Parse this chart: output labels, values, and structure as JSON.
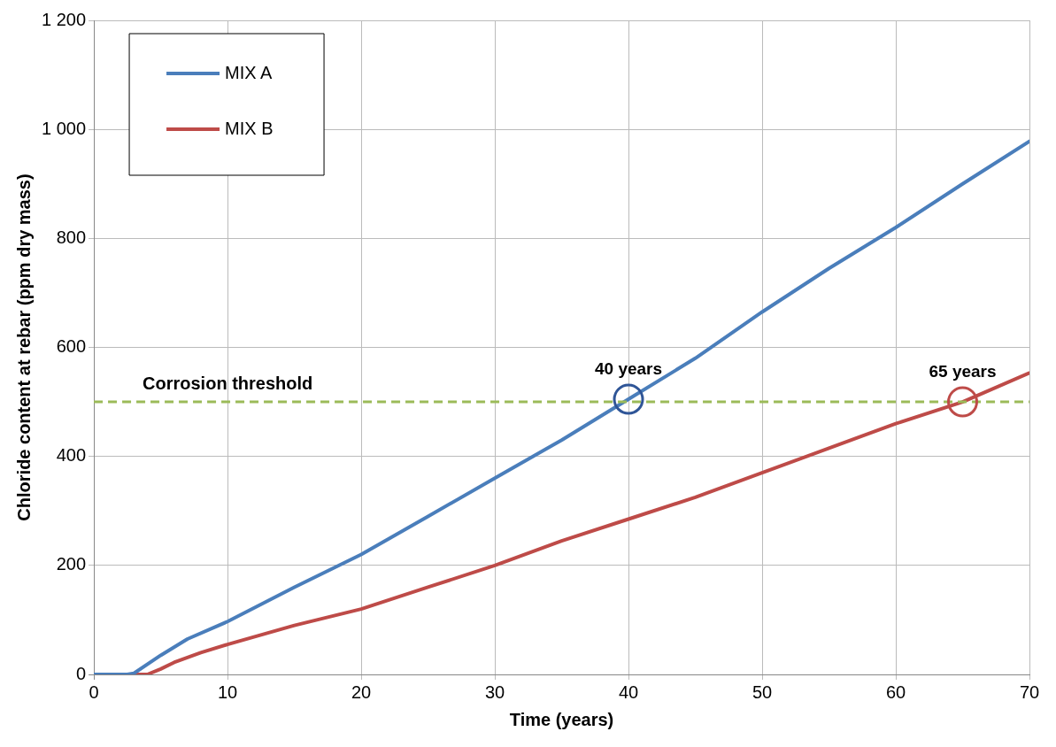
{
  "chart_data": {
    "type": "line",
    "xlabel": "Time (years)",
    "ylabel": "Chloride content at rebar (ppm dry mass)",
    "xlim": [
      0,
      70
    ],
    "xticks": [
      0,
      10,
      20,
      30,
      40,
      50,
      60,
      70
    ],
    "ylim": [
      0,
      1200
    ],
    "yticks": [
      0,
      200,
      400,
      600,
      800,
      {
        "value": 1000,
        "label": "1 000"
      },
      {
        "value": 1200,
        "label": "1 200"
      }
    ],
    "grid": true,
    "legend": "top left",
    "marker": "none",
    "line_style": "solid",
    "series": [
      {
        "name": "MIX A",
        "color": "#4a7ebb",
        "x": [
          0,
          2.5,
          3,
          5,
          7,
          10,
          15,
          20,
          25,
          30,
          35,
          40,
          45,
          50,
          55,
          60,
          65,
          70
        ],
        "values": [
          0,
          0,
          2,
          35,
          65,
          97,
          160,
          220,
          290,
          360,
          430,
          505,
          580,
          665,
          745,
          820,
          900,
          978
        ]
      },
      {
        "name": "MIX B",
        "color": "#be4b48",
        "x": [
          0,
          4,
          5,
          6,
          8,
          10,
          15,
          20,
          25,
          30,
          35,
          40,
          45,
          50,
          55,
          60,
          65,
          70
        ],
        "values": [
          0,
          0,
          10,
          22,
          40,
          55,
          90,
          120,
          160,
          200,
          245,
          285,
          325,
          370,
          415,
          460,
          500,
          553
        ]
      }
    ],
    "ref_lines": [
      {
        "axis": "y",
        "value": 500,
        "label": "Corrosion threshold",
        "color": "#9bbb59",
        "line_style": "dashed"
      }
    ],
    "annotations": [
      {
        "text": "40 years",
        "x": 40,
        "y": 505
      },
      {
        "text": "65 years",
        "x": 65,
        "y": 500
      }
    ]
  }
}
